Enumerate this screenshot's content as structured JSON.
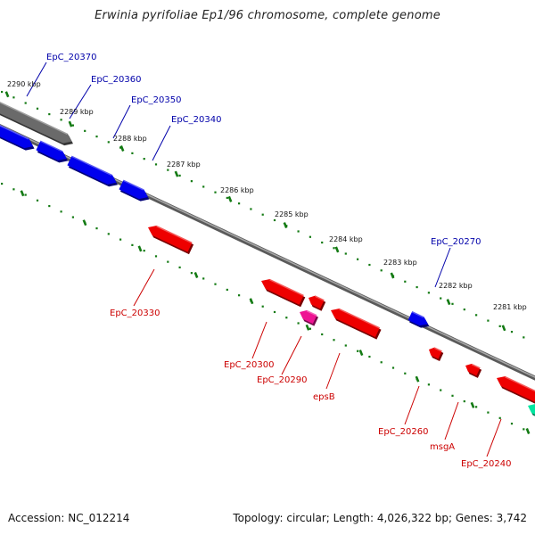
{
  "title": "Erwinia pyrifoliae Ep1/96 chromosome, complete genome",
  "footer": {
    "accession": "Accession: NC_012214",
    "summary": "Topology: circular; Length: 4,026,322 bp; Genes: 3,742"
  },
  "colors": {
    "forward_gene": "#0000ee",
    "reverse_gene": "#ee0000",
    "rna_gene": "#ee1493",
    "other_gene": "#00e6a0",
    "backbone": "#777777",
    "tick": "#137a13",
    "forward_label": "#0000aa",
    "reverse_label": "#cc0000"
  },
  "ticks": [
    {
      "label": "2290 kbp"
    },
    {
      "label": "2289 kbp"
    },
    {
      "label": "2288 kbp"
    },
    {
      "label": "2287 kbp"
    },
    {
      "label": "2286 kbp"
    },
    {
      "label": "2285 kbp"
    },
    {
      "label": "2284 kbp"
    },
    {
      "label": "2283 kbp"
    },
    {
      "label": "2282 kbp"
    },
    {
      "label": "2281 kbp"
    }
  ],
  "forward_genes": [
    {
      "label": "EpC_20370"
    },
    {
      "label": "EpC_20360"
    },
    {
      "label": "EpC_20350"
    },
    {
      "label": "EpC_20340"
    },
    {
      "label": "EpC_20270"
    }
  ],
  "reverse_genes": [
    {
      "label": "EpC_20330"
    },
    {
      "label": "EpC_20300"
    },
    {
      "label": "EpC_20290"
    },
    {
      "label": "epsB"
    },
    {
      "label": "EpC_20260"
    },
    {
      "label": "msgA"
    },
    {
      "label": "EpC_20240"
    }
  ]
}
